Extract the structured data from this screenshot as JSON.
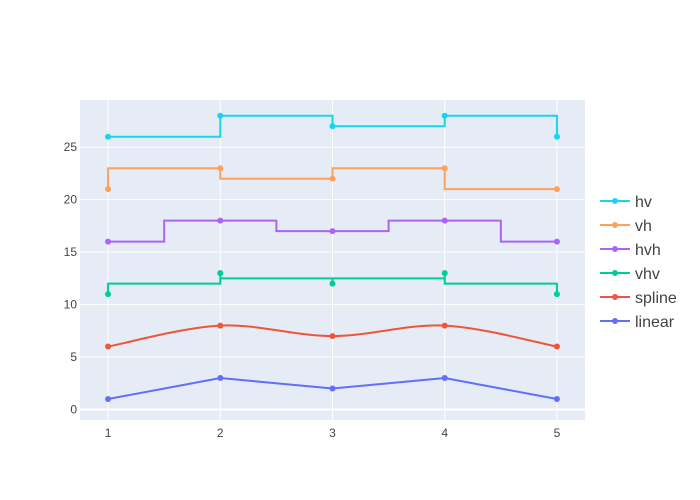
{
  "chart_data": {
    "type": "line",
    "title": "",
    "xlabel": "",
    "ylabel": "",
    "xlim": [
      0.75,
      5.25
    ],
    "ylim": [
      -1,
      29.5
    ],
    "x_ticks": [
      1,
      2,
      3,
      4,
      5
    ],
    "y_ticks": [
      0,
      5,
      10,
      15,
      20,
      25
    ],
    "grid": true,
    "legend_position": "right",
    "x": [
      1,
      2,
      3,
      4,
      5
    ],
    "series": [
      {
        "name": "linear",
        "shape": "linear",
        "color": "#636efa",
        "values": [
          1,
          3,
          2,
          3,
          1
        ]
      },
      {
        "name": "spline",
        "shape": "spline",
        "color": "#ef553b",
        "values": [
          6,
          8,
          7,
          8,
          6
        ]
      },
      {
        "name": "vhv",
        "shape": "vhv",
        "color": "#00cc96",
        "values": [
          11,
          13,
          12,
          13,
          11
        ]
      },
      {
        "name": "hvh",
        "shape": "hvh",
        "color": "#ab63fa",
        "values": [
          16,
          18,
          17,
          18,
          16
        ]
      },
      {
        "name": "vh",
        "shape": "vh",
        "color": "#ffa15a",
        "values": [
          21,
          23,
          22,
          23,
          21
        ]
      },
      {
        "name": "hv",
        "shape": "hv",
        "color": "#19d3f3",
        "values": [
          26,
          28,
          27,
          28,
          26
        ]
      }
    ],
    "legend_order": [
      "hv",
      "vh",
      "hvh",
      "vhv",
      "spline",
      "linear"
    ]
  }
}
